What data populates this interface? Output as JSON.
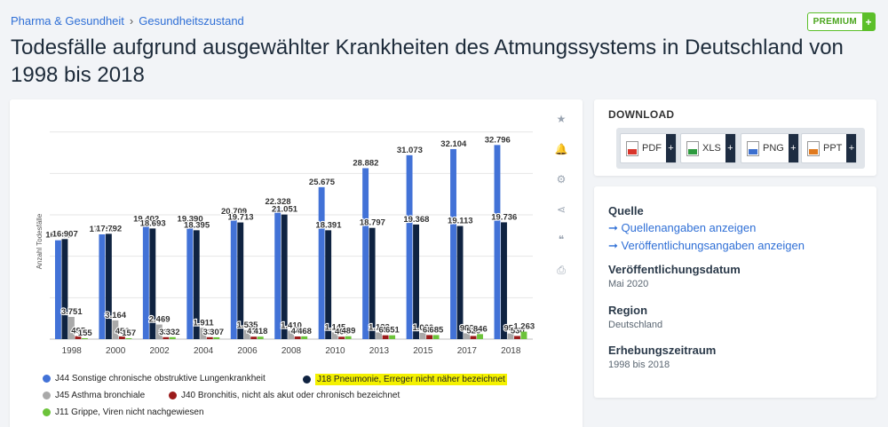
{
  "breadcrumb": {
    "item1": "Pharma & Gesundheit",
    "sep": "›",
    "item2": "Gesundheitszustand"
  },
  "premium": {
    "label": "PREMIUM",
    "plus": "+"
  },
  "title": "Todesfälle aufgrund ausgewählter Krankheiten des Atmungssystems in Deutschland von 1998 bis 2018",
  "tools": [
    "star-icon",
    "bell-icon",
    "gear-icon",
    "share-icon",
    "quote-icon",
    "print-icon"
  ],
  "tool_glyphs": [
    "★",
    "🔔",
    "⚙",
    "⋖",
    "❝",
    "⎙"
  ],
  "download": {
    "title": "DOWNLOAD",
    "buttons": [
      {
        "label": "PDF",
        "color": "#d9352b"
      },
      {
        "label": "XLS",
        "color": "#2e9b3f"
      },
      {
        "label": "PNG",
        "color": "#3b6fcf"
      },
      {
        "label": "PPT",
        "color": "#e07a1f"
      }
    ],
    "plus": "+"
  },
  "info": {
    "quelle": "Quelle",
    "link1": "➞ Quellenangaben anzeigen",
    "link2": "➞ Veröffentlichungsangaben anzeigen",
    "datum_h": "Veröffentlichungsdatum",
    "datum_v": "Mai 2020",
    "region_h": "Region",
    "region_v": "Deutschland",
    "zeitraum_h": "Erhebungszeitraum",
    "zeitraum_v": "1998 bis 2018"
  },
  "chart_data": {
    "type": "bar",
    "ylabel": "Anzahl Todesfälle",
    "ylim": [
      0,
      36000
    ],
    "categories": [
      "1998",
      "2000",
      "2002",
      "2004",
      "2006",
      "2008",
      "2010",
      "2013",
      "2015",
      "2017",
      "2018"
    ],
    "series": [
      {
        "name": "J44 Sonstige chronische obstruktive Lungenkrankheit",
        "color": "#4272d7",
        "values": [
          16700,
          17700,
          19402,
          19390,
          20709,
          22328,
          25675,
          28882,
          31073,
          32104,
          32796
        ],
        "labels": [
          "16.700",
          "17.700",
          "19.402",
          "19.390",
          "20.709",
          "22.328",
          "25.675",
          "28.882",
          "31.073",
          "32.104",
          "32.796"
        ]
      },
      {
        "name": "J18 Pneumonie, Erreger nicht näher bezeichnet",
        "color": "#0f2341",
        "values": [
          16907,
          17792,
          18693,
          18395,
          19713,
          21051,
          18391,
          18797,
          19368,
          19113,
          19736
        ],
        "labels": [
          "16.907",
          "17.792",
          "18.693",
          "18.395",
          "19.713",
          "21.051",
          "18.391",
          "18.797",
          "19.368",
          "19.113",
          "19.736"
        ]
      },
      {
        "name": "J45 Asthma bronchiale",
        "color": "#a9a9a9",
        "values": [
          3751,
          3164,
          2469,
          1911,
          1535,
          1410,
          1145,
          1133,
          1060,
          989,
          950
        ],
        "labels": [
          "3.751",
          "3.164",
          "2.469",
          "1.911",
          "1.535",
          "1.410",
          "1.145",
          "1.133",
          "1.060",
          "989",
          "950"
        ]
      },
      {
        "name": "J40 Bronchitis, nicht als akut oder chronisch bezeichnet",
        "color": "#9b1b1b",
        "values": [
          495,
          456,
          333,
          330,
          414,
          446,
          401,
          651,
          685,
          528,
          530
        ],
        "labels": [
          "495",
          "456",
          "333",
          "330",
          "414",
          "446",
          "401",
          "651",
          "685",
          "528",
          "530"
        ]
      },
      {
        "name": "J11 Grippe, Viren nicht nachgewiesen",
        "color": "#6cc33a",
        "values": [
          155,
          157,
          332,
          307,
          418,
          468,
          489,
          651,
          685,
          846,
          1263
        ],
        "labels": [
          "155",
          "157",
          "332",
          "307",
          "418",
          "468",
          "489",
          "651",
          "685",
          "846",
          "1.263"
        ]
      }
    ],
    "grid": true,
    "legend_placement": "bottom"
  }
}
